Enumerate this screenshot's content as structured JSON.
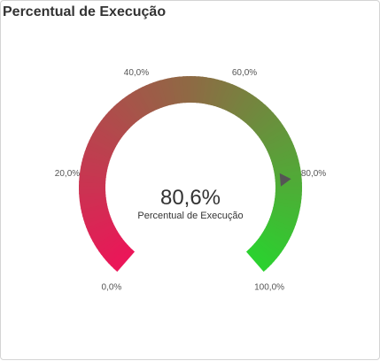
{
  "card": {
    "title": "Percentual de Execução"
  },
  "colors": {
    "start": "#ec1559",
    "mid": "#8e6a44",
    "end": "#2ad22f",
    "needle": "#555555",
    "label": "#555555",
    "value": "#333333"
  },
  "chart_data": {
    "type": "gauge",
    "min": 0,
    "max": 100,
    "value": 80.6,
    "value_label": "80,6%",
    "measure_label": "Percentual de Execução",
    "ticks": [
      {
        "value": 0,
        "label": "0,0%"
      },
      {
        "value": 20,
        "label": "20,0%"
      },
      {
        "value": 40,
        "label": "40,0%"
      },
      {
        "value": 60,
        "label": "60,0%"
      },
      {
        "value": 80,
        "label": "80,0%"
      },
      {
        "value": 100,
        "label": "100,0%"
      }
    ]
  }
}
